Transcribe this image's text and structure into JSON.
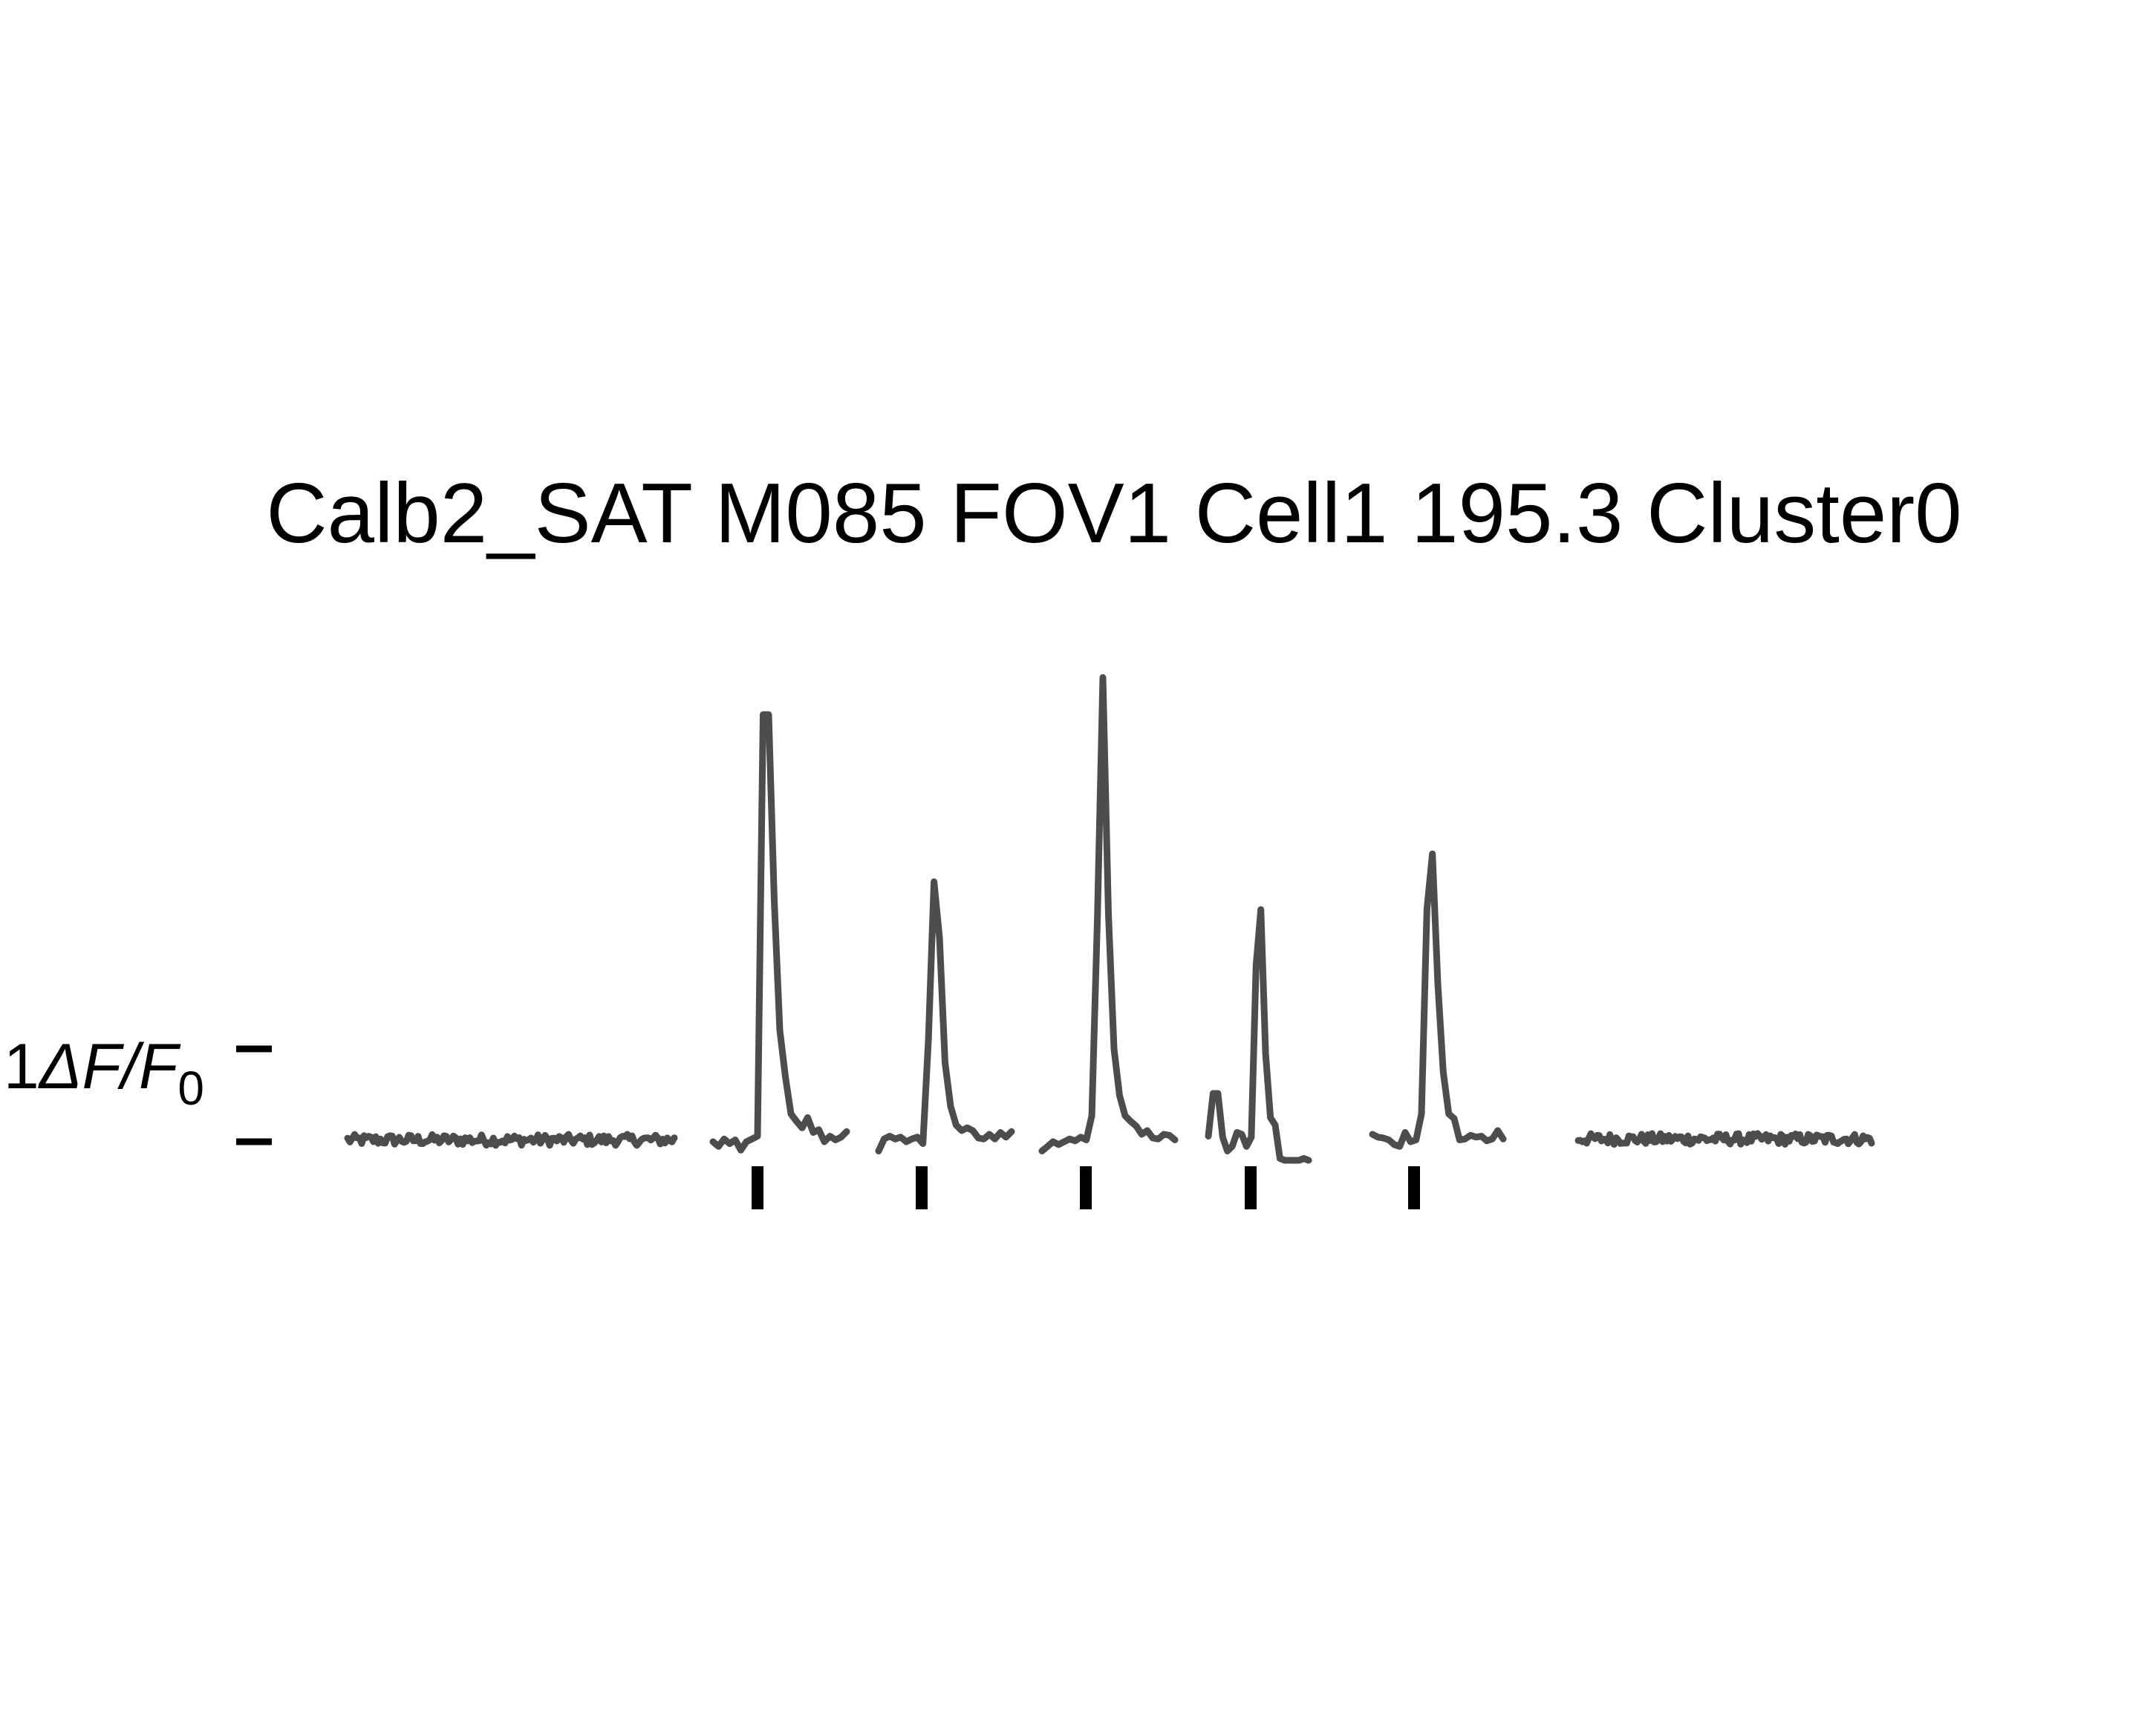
{
  "chart_data": {
    "type": "line",
    "title": "Calb2_SAT M085 FOV1 Cell1 195.3 Cluster0",
    "scale_bar": {
      "value": 1,
      "label_prefix": "1",
      "label_symbol": "ΔF/F",
      "label_subscript": "0"
    },
    "ylim": [
      -0.3,
      5.0
    ],
    "trace_color": "#4d4d4d",
    "marker_color": "#000000",
    "stimulus_markers": 5,
    "segments": [
      {
        "name": "baseline-pre",
        "kind": "noise",
        "n": 140,
        "level": 0.02,
        "amp": 0.06
      },
      {
        "name": "stim-1",
        "kind": "response",
        "values": [
          0.0,
          -0.05,
          0.03,
          -0.02,
          0.02,
          -0.09,
          0.0,
          0.03,
          0.06,
          4.6,
          4.6,
          2.6,
          1.2,
          0.7,
          0.3,
          0.22,
          0.15,
          0.26,
          0.1,
          0.13,
          0.0,
          0.06,
          0.02,
          0.05,
          0.11
        ]
      },
      {
        "name": "stim-2",
        "kind": "response",
        "values": [
          -0.1,
          0.03,
          0.06,
          0.03,
          0.05,
          0.0,
          0.03,
          0.05,
          -0.02,
          1.1,
          2.8,
          2.2,
          0.85,
          0.38,
          0.18,
          0.12,
          0.15,
          0.12,
          0.04,
          0.03,
          0.08,
          0.03,
          0.1,
          0.05,
          0.11
        ]
      },
      {
        "name": "stim-3",
        "kind": "response",
        "values": [
          -0.1,
          -0.05,
          0.0,
          -0.03,
          0.0,
          0.03,
          0.01,
          0.05,
          0.02,
          0.28,
          2.4,
          5.0,
          2.45,
          1.0,
          0.5,
          0.28,
          0.22,
          0.17,
          0.08,
          0.12,
          0.04,
          0.03,
          0.08,
          0.07,
          0.02
        ]
      },
      {
        "name": "stim-4",
        "kind": "response",
        "values": [
          0.06,
          0.52,
          0.52,
          0.05,
          -0.1,
          -0.05,
          0.1,
          0.08,
          -0.05,
          0.05,
          1.9,
          2.5,
          0.95,
          0.26,
          0.18,
          -0.18,
          -0.2,
          -0.2,
          -0.2,
          -0.2,
          -0.18,
          -0.2
        ]
      },
      {
        "name": "stim-5",
        "kind": "response",
        "values": [
          0.08,
          0.05,
          0.04,
          0.02,
          -0.03,
          -0.05,
          0.1,
          0.0,
          0.02,
          0.3,
          2.5,
          3.1,
          1.7,
          0.75,
          0.3,
          0.25,
          0.02,
          0.03,
          0.07,
          0.05,
          0.06,
          0.01,
          0.03,
          0.12,
          0.03
        ]
      },
      {
        "name": "baseline-post",
        "kind": "noise",
        "n": 140,
        "level": 0.03,
        "amp": 0.06
      }
    ]
  }
}
